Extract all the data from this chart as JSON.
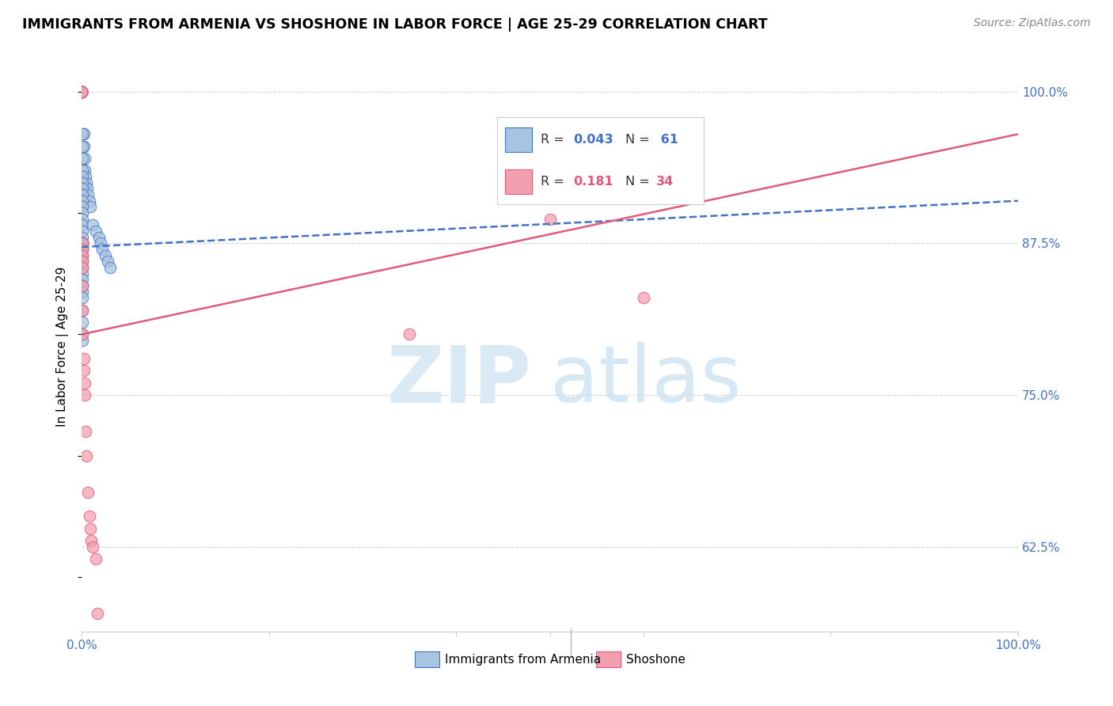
{
  "title": "IMMIGRANTS FROM ARMENIA VS SHOSHONE IN LABOR FORCE | AGE 25-29 CORRELATION CHART",
  "source": "Source: ZipAtlas.com",
  "ylabel": "In Labor Force | Age 25-29",
  "ytick_labels": [
    "62.5%",
    "75.0%",
    "87.5%",
    "100.0%"
  ],
  "ytick_values": [
    0.625,
    0.75,
    0.875,
    1.0
  ],
  "color_armenia": "#a8c4e0",
  "color_shoshone": "#f2a0b0",
  "color_line_armenia": "#4472c4",
  "color_line_shoshone": "#e05a7a",
  "legend_label_armenia": "Immigrants from Armenia",
  "legend_label_shoshone": "Shoshone",
  "armenia_x": [
    0.0,
    0.0,
    0.0,
    0.0,
    0.0,
    0.0,
    0.0,
    0.0,
    0.0,
    0.0,
    0.002,
    0.002,
    0.003,
    0.003,
    0.004,
    0.005,
    0.006,
    0.007,
    0.008,
    0.009,
    0.001,
    0.001,
    0.001,
    0.001,
    0.001,
    0.001,
    0.001,
    0.001,
    0.001,
    0.001,
    0.001,
    0.001,
    0.001,
    0.001,
    0.001,
    0.001,
    0.001,
    0.001,
    0.001,
    0.001,
    0.001,
    0.001,
    0.001,
    0.001,
    0.001,
    0.001,
    0.001,
    0.001,
    0.001,
    0.001,
    0.001,
    0.001,
    0.001,
    0.012,
    0.015,
    0.018,
    0.02,
    0.022,
    0.025,
    0.028,
    0.03
  ],
  "armenia_y": [
    1.0,
    1.0,
    1.0,
    1.0,
    1.0,
    1.0,
    1.0,
    1.0,
    1.0,
    1.0,
    0.965,
    0.955,
    0.945,
    0.935,
    0.93,
    0.925,
    0.92,
    0.915,
    0.91,
    0.905,
    0.965,
    0.955,
    0.945,
    0.935,
    0.93,
    0.925,
    0.92,
    0.915,
    0.91,
    0.905,
    0.9,
    0.895,
    0.89,
    0.885,
    0.88,
    0.875,
    0.875,
    0.875,
    0.87,
    0.87,
    0.865,
    0.86,
    0.855,
    0.85,
    0.845,
    0.84,
    0.84,
    0.835,
    0.83,
    0.82,
    0.81,
    0.8,
    0.795,
    0.89,
    0.885,
    0.88,
    0.875,
    0.87,
    0.865,
    0.86,
    0.855
  ],
  "shoshone_x": [
    0.0,
    0.0,
    0.0,
    0.0,
    0.0,
    0.0,
    0.0,
    0.0,
    0.0,
    0.0,
    0.001,
    0.001,
    0.001,
    0.001,
    0.001,
    0.001,
    0.001,
    0.001,
    0.002,
    0.002,
    0.003,
    0.003,
    0.004,
    0.005,
    0.007,
    0.008,
    0.009,
    0.01,
    0.012,
    0.015,
    0.017,
    0.5,
    0.35,
    0.6
  ],
  "shoshone_y": [
    1.0,
    1.0,
    1.0,
    1.0,
    1.0,
    1.0,
    1.0,
    1.0,
    1.0,
    1.0,
    0.875,
    0.87,
    0.865,
    0.86,
    0.855,
    0.84,
    0.82,
    0.8,
    0.78,
    0.77,
    0.76,
    0.75,
    0.72,
    0.7,
    0.67,
    0.65,
    0.64,
    0.63,
    0.625,
    0.615,
    0.57,
    0.895,
    0.8,
    0.83
  ],
  "armenia_line_x0": 0.0,
  "armenia_line_y0": 0.872,
  "armenia_line_x1": 1.0,
  "armenia_line_y1": 0.91,
  "shoshone_line_x0": 0.0,
  "shoshone_line_y0": 0.8,
  "shoshone_line_x1": 1.0,
  "shoshone_line_y1": 0.965,
  "xlim": [
    0.0,
    1.0
  ],
  "ylim": [
    0.555,
    1.025
  ]
}
